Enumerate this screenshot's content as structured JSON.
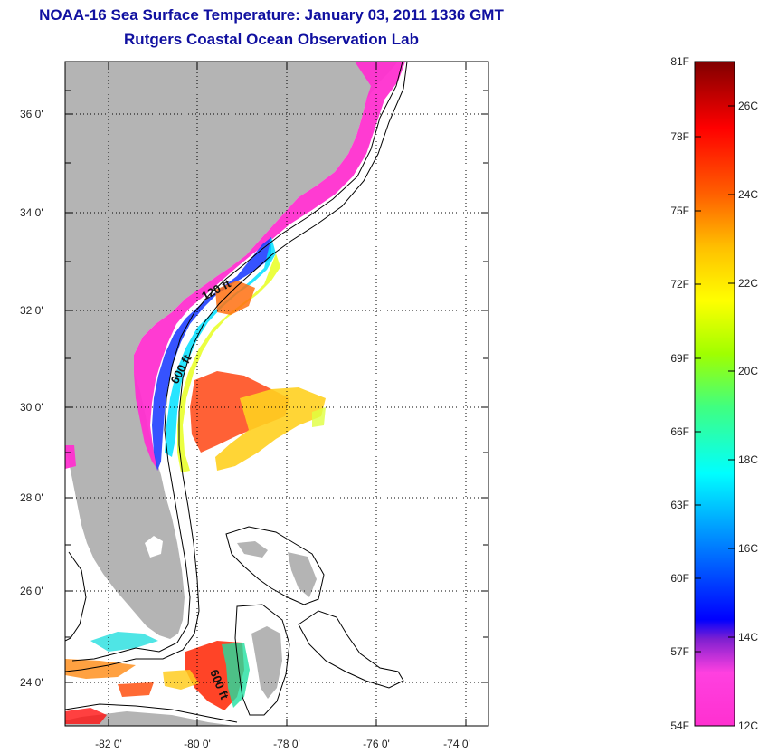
{
  "title": {
    "line1": "NOAA-16 Sea Surface Temperature:  January 03, 2011 1336 GMT",
    "line2": "Rutgers Coastal Ocean Observation Lab"
  },
  "map": {
    "lon_ticks": [
      "-82 0'",
      "-80 0'",
      "-78 0'",
      "-76 0'",
      "-74 0'"
    ],
    "lat_ticks": [
      "36 0'",
      "34 0'",
      "32 0'",
      "30 0'",
      "28 0'",
      "26 0'",
      "24 0'"
    ],
    "isobath_labels": [
      "120 ft",
      "600 ft",
      "600 ft"
    ],
    "land_color": "#b4b4b4"
  },
  "colorbar": {
    "fahrenheit_labels": [
      "81F",
      "78F",
      "75F",
      "72F",
      "69F",
      "66F",
      "63F",
      "60F",
      "57F",
      "54F"
    ],
    "celsius_labels": [
      "26C",
      "24C",
      "22C",
      "20C",
      "18C",
      "16C",
      "14C",
      "12C"
    ],
    "colors": [
      "#ff30d0",
      "#8020d0",
      "#0000ff",
      "#00a0ff",
      "#00ffff",
      "#40ff80",
      "#a0ff00",
      "#ffff00",
      "#ffc000",
      "#ff6000",
      "#ff0000",
      "#a00000",
      "#800000"
    ]
  }
}
